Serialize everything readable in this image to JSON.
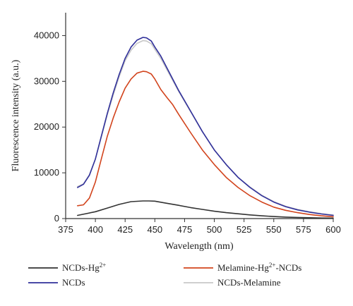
{
  "chart_data": {
    "type": "line",
    "title": "",
    "xlabel": "Wavelength (nm)",
    "ylabel": "Fluorescence intensity (a.u.)",
    "xlim": [
      375,
      600
    ],
    "ylim": [
      0,
      45000
    ],
    "x_ticks": [
      375,
      400,
      425,
      450,
      475,
      500,
      525,
      550,
      575,
      600
    ],
    "y_ticks": [
      0,
      10000,
      20000,
      30000,
      40000
    ],
    "grid": false,
    "legend_placement": "bottom",
    "series": [
      {
        "name_main": "NCDs-Hg",
        "name_sup": "2+",
        "name_tail": "",
        "color": "#333333",
        "x": [
          385,
          400,
          410,
          420,
          430,
          440,
          445,
          450,
          460,
          470,
          480,
          490,
          500,
          510,
          520,
          530,
          540,
          550,
          560,
          570,
          580,
          590,
          600
        ],
        "y": [
          700,
          1500,
          2300,
          3100,
          3700,
          3850,
          3850,
          3800,
          3350,
          2900,
          2400,
          2000,
          1600,
          1300,
          1050,
          800,
          600,
          450,
          330,
          250,
          180,
          130,
          100
        ]
      },
      {
        "name_main": "Melamine-Hg",
        "name_sup": "2+",
        "name_tail": "-NCDs",
        "color": "#d2441d",
        "x": [
          385,
          390,
          395,
          400,
          405,
          410,
          415,
          420,
          425,
          430,
          435,
          440,
          443,
          447,
          450,
          455,
          460,
          465,
          470,
          480,
          490,
          500,
          510,
          520,
          530,
          540,
          550,
          560,
          570,
          580,
          590,
          600
        ],
        "y": [
          2800,
          3000,
          4500,
          8000,
          13000,
          18000,
          22000,
          25500,
          28500,
          30500,
          31800,
          32200,
          32100,
          31600,
          30500,
          28200,
          26500,
          24900,
          22800,
          18800,
          15000,
          11800,
          9000,
          6800,
          5000,
          3600,
          2500,
          1800,
          1300,
          900,
          600,
          400
        ]
      },
      {
        "name_main": "NCDs",
        "name_sup": "",
        "name_tail": "",
        "color": "#30309a",
        "x": [
          385,
          390,
          395,
          400,
          405,
          410,
          415,
          420,
          425,
          430,
          435,
          440,
          443,
          447,
          450,
          455,
          460,
          470,
          480,
          490,
          500,
          510,
          520,
          530,
          540,
          550,
          560,
          570,
          580,
          590,
          600
        ],
        "y": [
          6800,
          7500,
          9500,
          13000,
          18000,
          23000,
          27500,
          31500,
          35000,
          37500,
          39000,
          39600,
          39500,
          38800,
          37500,
          35500,
          33000,
          28000,
          23500,
          19000,
          15000,
          11800,
          9000,
          6800,
          5000,
          3600,
          2600,
          1900,
          1400,
          1000,
          700
        ]
      },
      {
        "name_main": "NCDs-Melamine",
        "name_sup": "",
        "name_tail": "",
        "color": "#c8c8c8",
        "x": [
          385,
          390,
          395,
          400,
          405,
          410,
          415,
          420,
          425,
          430,
          435,
          440,
          443,
          447,
          450,
          455,
          460,
          470,
          480,
          490,
          500,
          510,
          520,
          530,
          540,
          550,
          560,
          570,
          580,
          590,
          600
        ],
        "y": [
          7000,
          7600,
          9600,
          13000,
          17800,
          22700,
          27000,
          31000,
          34500,
          36800,
          38300,
          38900,
          38800,
          38200,
          37000,
          35000,
          32600,
          27800,
          23400,
          19000,
          15000,
          11800,
          9000,
          6900,
          5100,
          3700,
          2700,
          2000,
          1500,
          1100,
          800
        ]
      }
    ]
  }
}
